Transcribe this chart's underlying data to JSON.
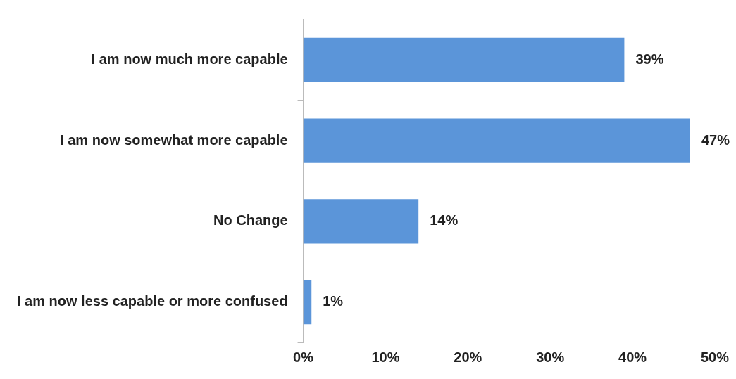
{
  "chart_data": {
    "type": "bar",
    "orientation": "horizontal",
    "categories": [
      "I am now much more capable",
      "I am now somewhat more capable",
      "No Change",
      "I am now less capable or more confused"
    ],
    "values": [
      39,
      47,
      14,
      1
    ],
    "value_labels": [
      "39%",
      "47%",
      "14%",
      "1%"
    ],
    "color": "#5b95d9",
    "xlim": [
      0,
      50
    ],
    "xticks": [
      {
        "value": 0,
        "label": "0%"
      },
      {
        "value": 10,
        "label": "10%"
      },
      {
        "value": 20,
        "label": "20%"
      },
      {
        "value": 30,
        "label": "30%"
      },
      {
        "value": 40,
        "label": "40%"
      },
      {
        "value": 50,
        "label": "50%"
      }
    ],
    "grid": false,
    "legend": false
  }
}
